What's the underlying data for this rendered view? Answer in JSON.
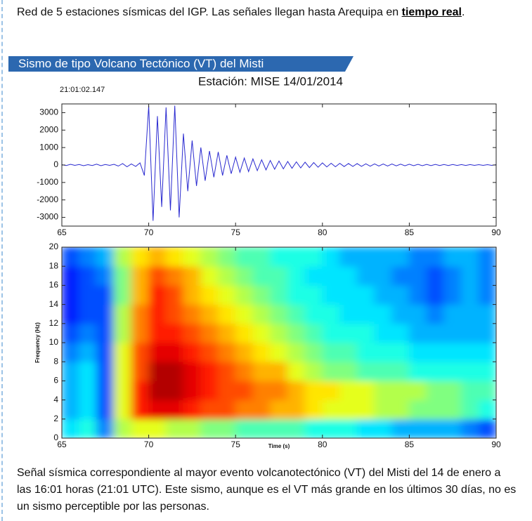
{
  "intro": {
    "text": "Red de 5 estaciones sísmicas del IGP. Las señales llegan hasta Arequipa en ",
    "link": "tiempo real",
    "end": "."
  },
  "heading": "Sismo de tipo Volcano Tectónico (VT) del Misti",
  "chart_data": [
    {
      "type": "line",
      "title": "Estación: MISE 14/01/2014",
      "subtitle": "21:01:02.147",
      "color": "#2a2ad0",
      "x": [
        65,
        65.25,
        65.5,
        65.75,
        66,
        66.25,
        66.5,
        66.75,
        67,
        67.25,
        67.5,
        67.75,
        68,
        68.25,
        68.5,
        68.75,
        69,
        69.25,
        69.5,
        69.75,
        70,
        70.25,
        70.5,
        70.75,
        71,
        71.25,
        71.5,
        71.75,
        72,
        72.25,
        72.5,
        72.75,
        73,
        73.25,
        73.5,
        73.75,
        74,
        74.25,
        74.5,
        74.75,
        75,
        75.25,
        75.5,
        75.75,
        76,
        76.25,
        76.5,
        76.75,
        77,
        77.25,
        77.5,
        77.75,
        78,
        78.25,
        78.5,
        78.75,
        79,
        79.25,
        79.5,
        79.75,
        80,
        80.25,
        80.5,
        80.75,
        81,
        81.25,
        81.5,
        81.75,
        82,
        82.25,
        82.5,
        82.75,
        83,
        83.25,
        83.5,
        83.75,
        84,
        84.25,
        84.5,
        84.75,
        85,
        85.25,
        85.5,
        85.75,
        86,
        86.25,
        86.5,
        86.75,
        87,
        87.25,
        87.5,
        87.75,
        88,
        88.25,
        88.5,
        88.75,
        89,
        89.25,
        89.5,
        89.75,
        90
      ],
      "values": [
        20,
        -30,
        40,
        -20,
        30,
        -40,
        20,
        -30,
        50,
        -40,
        30,
        -20,
        40,
        -60,
        80,
        -100,
        60,
        -80,
        120,
        -600,
        3400,
        -3200,
        2800,
        -2400,
        3300,
        -2600,
        3400,
        -3000,
        1800,
        -1500,
        1400,
        -1200,
        1000,
        -900,
        800,
        -700,
        750,
        -600,
        550,
        -500,
        450,
        -420,
        400,
        -380,
        350,
        -320,
        300,
        -280,
        260,
        -240,
        230,
        -220,
        200,
        -190,
        180,
        -170,
        160,
        -150,
        140,
        -130,
        120,
        -110,
        100,
        -100,
        95,
        -90,
        85,
        -80,
        80,
        -75,
        70,
        -70,
        65,
        -60,
        60,
        -55,
        55,
        -50,
        50,
        -45,
        45,
        -40,
        40,
        -40,
        35,
        -35,
        35,
        -30,
        30,
        -30,
        30,
        -25,
        25,
        -25,
        25,
        -20,
        20,
        -20,
        20,
        -20,
        20
      ],
      "xlim": [
        65,
        90
      ],
      "xticks": [
        65,
        70,
        75,
        80,
        85,
        90
      ],
      "ylim": [
        -3500,
        3500
      ],
      "yticks": [
        -3000,
        -2000,
        -1000,
        0,
        1000,
        2000,
        3000
      ]
    },
    {
      "type": "heatmap",
      "xlabel": "Time (s)",
      "ylabel": "Frequency (Hz)",
      "x_edges": [
        65,
        66,
        67,
        68,
        69,
        70,
        71,
        72,
        73,
        74,
        75,
        76,
        77,
        78,
        79,
        80,
        81,
        82,
        83,
        84,
        85,
        86,
        87,
        88,
        89,
        90
      ],
      "y_edges": [
        0,
        2,
        4,
        6,
        8,
        10,
        12,
        14,
        16,
        18,
        20
      ],
      "z": [
        [
          0.35,
          0.3,
          0.3,
          0.3,
          0.25,
          0.2,
          0.15,
          0.15,
          0.15,
          0.2
        ],
        [
          0.4,
          0.35,
          0.35,
          0.35,
          0.3,
          0.25,
          0.2,
          0.2,
          0.2,
          0.25
        ],
        [
          0.25,
          0.2,
          0.2,
          0.2,
          0.2,
          0.2,
          0.2,
          0.2,
          0.25,
          0.3
        ],
        [
          0.55,
          0.6,
          0.6,
          0.6,
          0.6,
          0.55,
          0.55,
          0.5,
          0.5,
          0.55
        ],
        [
          0.6,
          0.85,
          0.85,
          0.8,
          0.8,
          0.75,
          0.75,
          0.7,
          0.7,
          0.65
        ],
        [
          0.6,
          0.9,
          0.95,
          0.95,
          0.9,
          0.85,
          0.85,
          0.85,
          0.8,
          0.7
        ],
        [
          0.55,
          0.9,
          0.95,
          0.95,
          0.9,
          0.85,
          0.8,
          0.8,
          0.75,
          0.65
        ],
        [
          0.55,
          0.85,
          0.9,
          0.9,
          0.85,
          0.8,
          0.75,
          0.7,
          0.7,
          0.6
        ],
        [
          0.5,
          0.8,
          0.85,
          0.85,
          0.8,
          0.75,
          0.7,
          0.65,
          0.6,
          0.55
        ],
        [
          0.5,
          0.8,
          0.8,
          0.8,
          0.75,
          0.7,
          0.65,
          0.6,
          0.55,
          0.5
        ],
        [
          0.45,
          0.75,
          0.8,
          0.75,
          0.7,
          0.65,
          0.6,
          0.55,
          0.5,
          0.45
        ],
        [
          0.45,
          0.75,
          0.75,
          0.7,
          0.65,
          0.6,
          0.55,
          0.5,
          0.45,
          0.45
        ],
        [
          0.45,
          0.7,
          0.75,
          0.7,
          0.6,
          0.55,
          0.5,
          0.45,
          0.45,
          0.4
        ],
        [
          0.45,
          0.7,
          0.7,
          0.6,
          0.55,
          0.5,
          0.45,
          0.4,
          0.4,
          0.4
        ],
        [
          0.4,
          0.65,
          0.65,
          0.55,
          0.5,
          0.45,
          0.4,
          0.4,
          0.35,
          0.4
        ],
        [
          0.4,
          0.6,
          0.65,
          0.5,
          0.45,
          0.4,
          0.4,
          0.35,
          0.35,
          0.35
        ],
        [
          0.4,
          0.6,
          0.6,
          0.5,
          0.45,
          0.4,
          0.35,
          0.35,
          0.35,
          0.3
        ],
        [
          0.35,
          0.6,
          0.6,
          0.45,
          0.4,
          0.4,
          0.35,
          0.35,
          0.3,
          0.3
        ],
        [
          0.35,
          0.55,
          0.55,
          0.45,
          0.4,
          0.35,
          0.35,
          0.3,
          0.3,
          0.3
        ],
        [
          0.3,
          0.55,
          0.55,
          0.45,
          0.4,
          0.35,
          0.3,
          0.3,
          0.25,
          0.3
        ],
        [
          0.3,
          0.5,
          0.55,
          0.4,
          0.35,
          0.3,
          0.3,
          0.25,
          0.25,
          0.25
        ],
        [
          0.3,
          0.5,
          0.5,
          0.4,
          0.35,
          0.3,
          0.25,
          0.2,
          0.2,
          0.25
        ],
        [
          0.3,
          0.5,
          0.5,
          0.4,
          0.35,
          0.3,
          0.3,
          0.25,
          0.25,
          0.3
        ],
        [
          0.25,
          0.45,
          0.45,
          0.4,
          0.35,
          0.3,
          0.3,
          0.3,
          0.3,
          0.3
        ],
        [
          0.2,
          0.4,
          0.45,
          0.4,
          0.35,
          0.3,
          0.3,
          0.25,
          0.25,
          0.25
        ]
      ],
      "xlim": [
        65,
        90
      ],
      "xticks": [
        65,
        70,
        75,
        80,
        85,
        90
      ],
      "ylim": [
        0,
        20
      ],
      "yticks": [
        0,
        2,
        4,
        6,
        8,
        10,
        12,
        14,
        16,
        18,
        20
      ]
    }
  ],
  "caption": "Señal sísmica correspondiente al mayor evento volcanotectónico (VT) del Misti del 14 de enero a las 16:01 horas (21:01 UTC). Este sismo, aunque es el VT más grande en los últimos 30 días, no es un sismo perceptible por las personas."
}
